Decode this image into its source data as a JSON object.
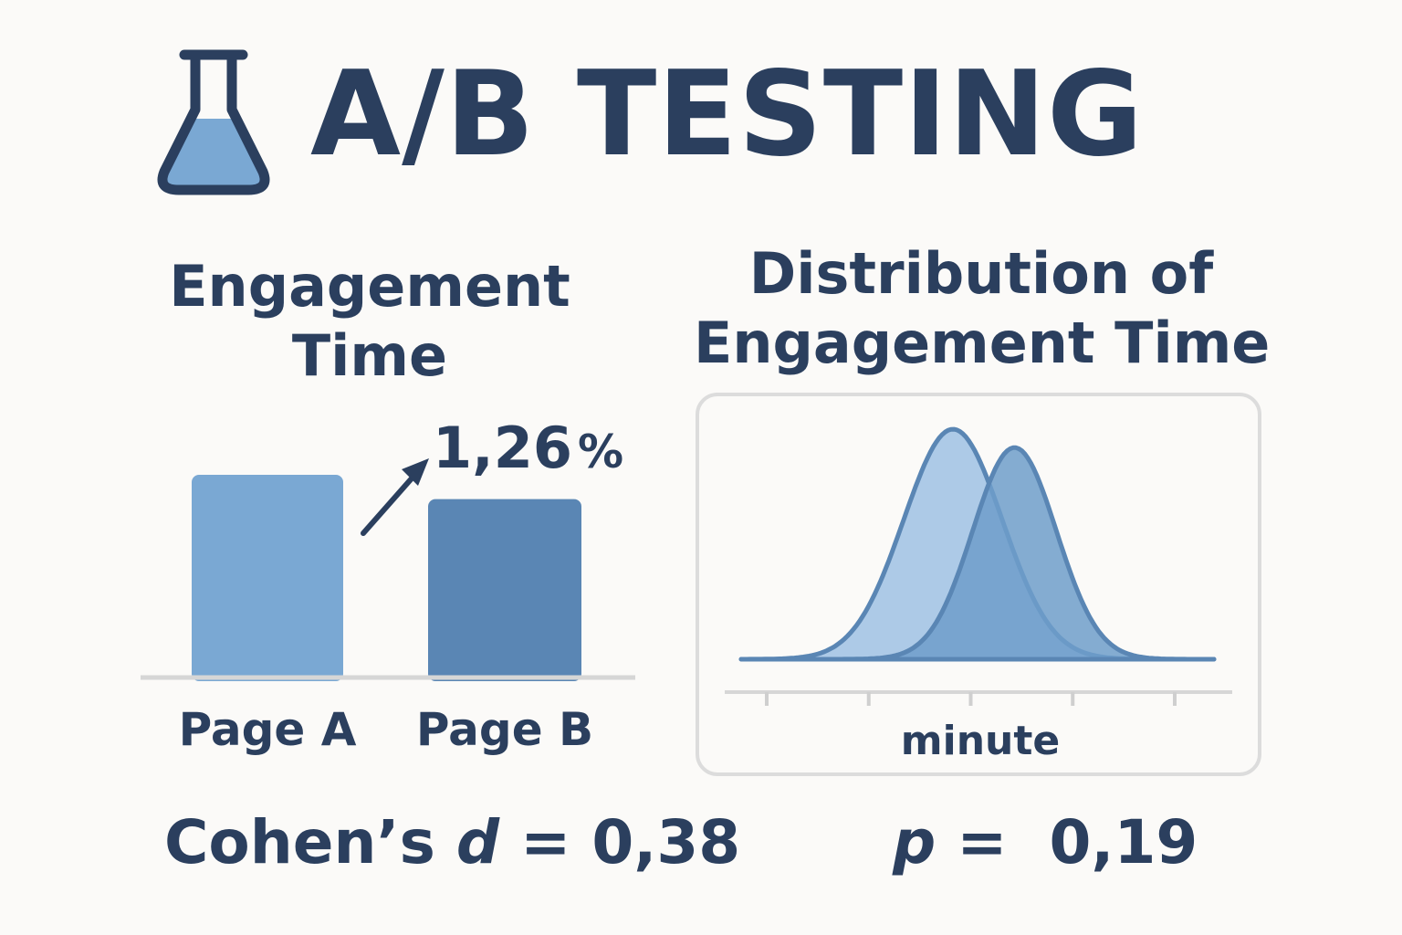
{
  "header": {
    "icon": "flask-icon",
    "title": "A/B TESTING"
  },
  "colors": {
    "text": "#2b3f5e",
    "bar_a": "#7aa8d3",
    "bar_b": "#5a86b4",
    "curve_a_fill": "#a9c7e6",
    "curve_b_fill": "#6f9dca",
    "curve_stroke": "#5a86b4",
    "axis": "#d6d6d6",
    "panel_border": "#dcdcdc"
  },
  "chart_data": [
    {
      "type": "bar",
      "title_lines": [
        "Engagement",
        "Time"
      ],
      "categories": [
        "Page A",
        "Page B"
      ],
      "values": [
        1.0,
        0.88
      ],
      "annotation": {
        "text": "1,26",
        "unit": "%",
        "icon": "arrow-up-right-icon"
      },
      "grid": false,
      "ylim": [
        0,
        1.1
      ]
    },
    {
      "type": "area",
      "title_lines": [
        "Distribution of",
        "Engagement Time"
      ],
      "xlabel": "minute",
      "x_ticks": 5,
      "series": [
        {
          "mean": 0,
          "sd": 1,
          "peak": 1.0
        },
        {
          "mean": 1.25,
          "sd": 0.85,
          "peak": 0.92
        }
      ],
      "xlim": [
        -4.3,
        5.3
      ],
      "grid": false
    }
  ],
  "stats": {
    "cohen_label": "Cohen’s",
    "cohen_symbol": "d",
    "cohen_eq": "= 0,38",
    "p_symbol": "p",
    "p_eq": "=  0,19"
  }
}
